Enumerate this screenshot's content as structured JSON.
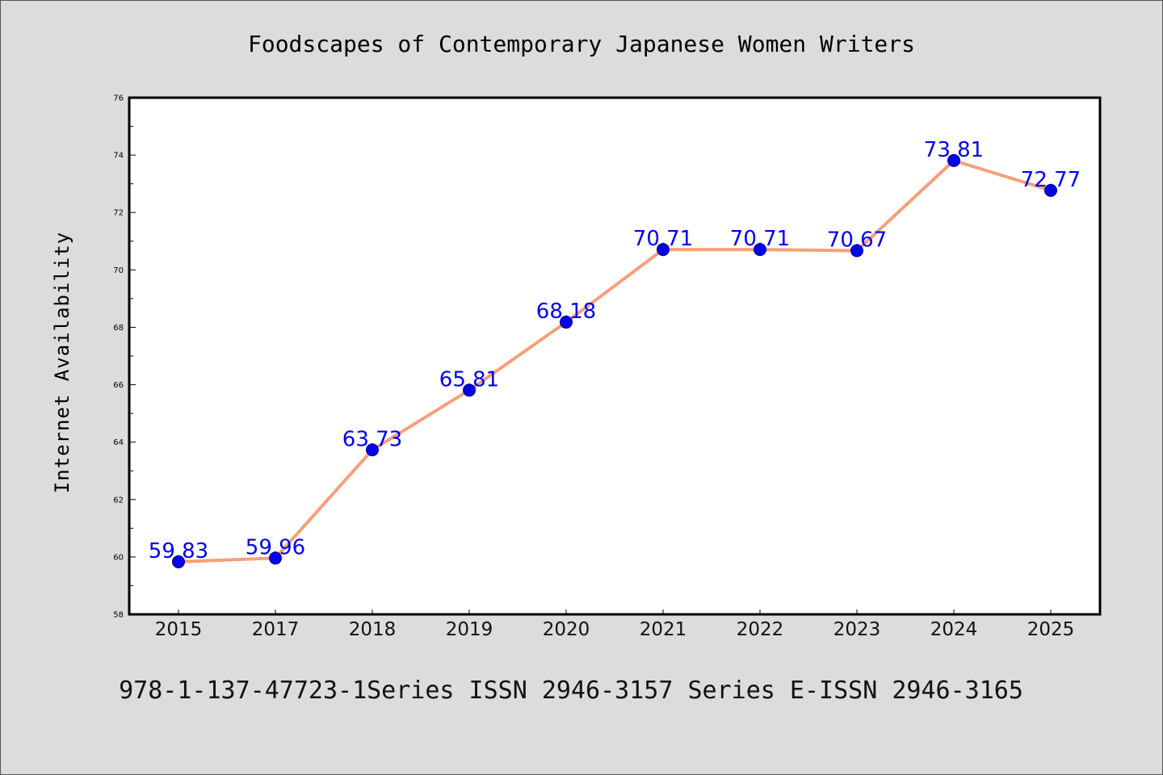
{
  "chart_data": {
    "type": "line",
    "title": "Foodscapes of Contemporary Japanese Women Writers",
    "ylabel": "Internet Availability",
    "xlabel": "",
    "categories": [
      "2015",
      "2017",
      "2018",
      "2019",
      "2020",
      "2021",
      "2022",
      "2023",
      "2024",
      "2025"
    ],
    "values": [
      59.83,
      59.96,
      63.73,
      65.81,
      68.18,
      70.71,
      70.71,
      70.67,
      73.81,
      72.77
    ],
    "data_labels": [
      "59.83",
      "59.96",
      "63.73",
      "65.81",
      "68.18",
      "70.71",
      "70.71",
      "70.67",
      "73.81",
      "72.77"
    ],
    "ylim": [
      58,
      76
    ],
    "yticks": [
      "58",
      "60",
      "62",
      "64",
      "66",
      "68",
      "70",
      "72",
      "74",
      "76"
    ],
    "grid": false,
    "legend": false
  },
  "footer_text": "978-1-137-47723-1Series ISSN 2946-3157 Series E-ISSN 2946-3165",
  "colors": {
    "background": "#dcdcdc",
    "plot_background": "#ffffff",
    "line": "#f5a07a",
    "marker": "#0000ee",
    "marker_edge": "#000080",
    "data_label": "#0000ee",
    "axis": "#000000"
  }
}
